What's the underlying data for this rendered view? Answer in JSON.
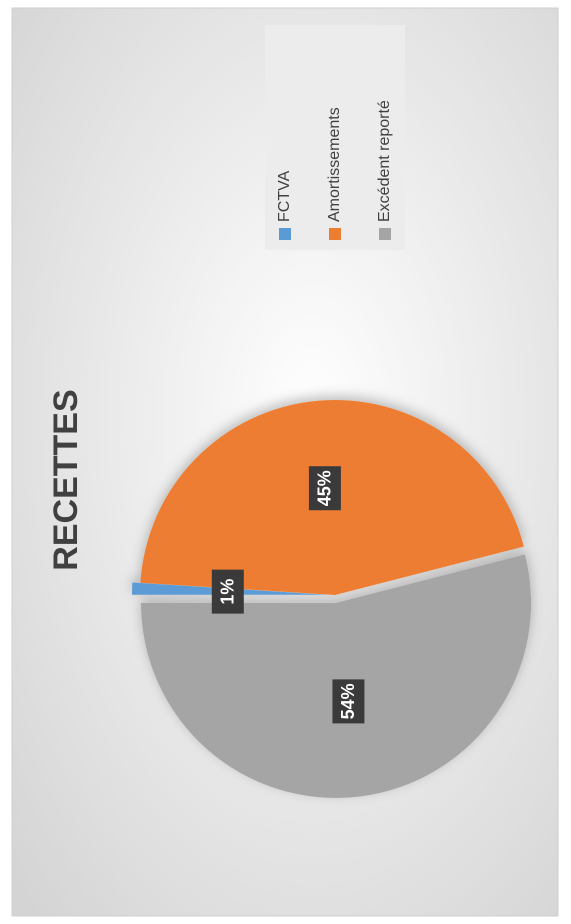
{
  "chart_data": {
    "type": "pie",
    "title": "RECETTES",
    "categories": [
      "FCTVA",
      "Amortissements",
      "Excédent reporté"
    ],
    "values": [
      1,
      45,
      54
    ],
    "value_labels": [
      "1%",
      "45%",
      "54%"
    ],
    "colors": [
      "#5b9bd5",
      "#ed7d31",
      "#a5a5a5"
    ],
    "legend": "right"
  }
}
